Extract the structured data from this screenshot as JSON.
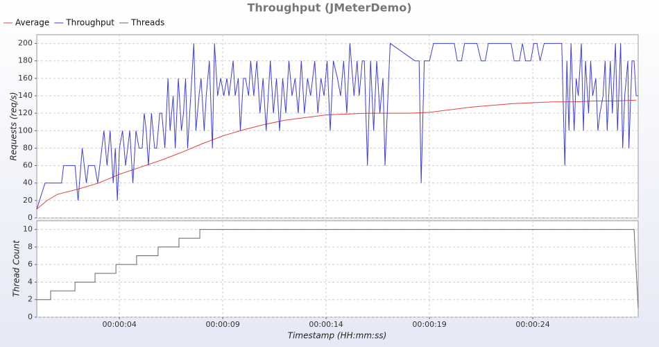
{
  "chart_data": [
    {
      "type": "line",
      "title": "Throughput (JMeterDemo)",
      "y_label": "Requests (req/s)",
      "xlim": [
        0,
        29.1
      ],
      "ylim": [
        0,
        210
      ],
      "yticks": [
        0,
        20,
        40,
        60,
        80,
        100,
        120,
        140,
        160,
        180,
        200
      ],
      "grid": true,
      "legend": "top-left",
      "series": [
        {
          "name": "Average",
          "color": "#e8403c",
          "x": [
            0,
            0.5,
            1,
            2,
            3,
            4,
            5,
            6,
            7,
            8,
            9,
            10,
            11,
            12,
            13,
            14,
            15,
            16,
            17,
            18,
            19,
            20,
            21,
            22,
            23,
            24,
            25,
            26,
            27,
            28,
            29
          ],
          "values": [
            10,
            20,
            27,
            33,
            40,
            50,
            58,
            66,
            75,
            85,
            94,
            101,
            107,
            112,
            115,
            118,
            119,
            120,
            120,
            120,
            121,
            124,
            127,
            129,
            131,
            132,
            133,
            133,
            134,
            134,
            135
          ]
        },
        {
          "name": "Throughput",
          "color": "#3c3cdd",
          "x": [
            0,
            0.4,
            1.2,
            1.3,
            1.85,
            2,
            2.2,
            2.4,
            2.5,
            2.8,
            2.95,
            3.25,
            3.4,
            3.55,
            3.7,
            3.8,
            3.9,
            4,
            4.15,
            4.3,
            4.4,
            4.5,
            4.65,
            4.8,
            4.95,
            5.1,
            5.2,
            5.3,
            5.4,
            5.55,
            5.7,
            5.8,
            5.95,
            6.05,
            6.2,
            6.35,
            6.45,
            6.6,
            6.7,
            6.85,
            7,
            7.1,
            7.2,
            7.3,
            7.45,
            7.6,
            7.7,
            7.85,
            7.95,
            8.1,
            8.2,
            8.35,
            8.5,
            8.6,
            8.75,
            8.9,
            9.05,
            9.2,
            9.3,
            9.5,
            9.6,
            9.75,
            9.85,
            10,
            10.1,
            10.25,
            10.35,
            10.5,
            10.65,
            10.8,
            10.95,
            11.1,
            11.3,
            11.45,
            11.6,
            11.75,
            11.9,
            12.05,
            12.2,
            12.35,
            12.5,
            12.65,
            12.8,
            12.95,
            13.1,
            13.25,
            13.45,
            13.6,
            13.75,
            13.9,
            14.05,
            14.2,
            14.35,
            14.55,
            14.7,
            14.85,
            15,
            15.15,
            15.35,
            15.5,
            15.6,
            15.75,
            15.85,
            16,
            16.15,
            16.3,
            16.45,
            16.6,
            16.75,
            16.85,
            17.1,
            18.3,
            18.5,
            18.6,
            18.75,
            19,
            19.2,
            20.2,
            20.35,
            20.55,
            20.7,
            21.3,
            21.5,
            21.7,
            21.85,
            22.95,
            23.1,
            23.35,
            23.5,
            23.65,
            23.9,
            24.05,
            24.2,
            24.35,
            24.55,
            25.4,
            25.55,
            25.65,
            25.75,
            25.85,
            26,
            26.1,
            26.2,
            26.35,
            26.45,
            26.55,
            26.7,
            26.8,
            26.9,
            27.05,
            27.15,
            27.25,
            27.4,
            27.5,
            27.6,
            27.75,
            27.85,
            28,
            28.1,
            28.25,
            28.35,
            28.45,
            28.6,
            28.65,
            28.8,
            28.9,
            29,
            29.1
          ],
          "values": [
            10,
            40,
            40,
            60,
            60,
            20,
            80,
            40,
            60,
            60,
            40,
            100,
            60,
            100,
            40,
            80,
            20,
            80,
            100,
            60,
            80,
            100,
            40,
            100,
            80,
            80,
            120,
            100,
            60,
            120,
            80,
            80,
            120,
            120,
            80,
            160,
            100,
            140,
            80,
            160,
            100,
            120,
            160,
            80,
            140,
            200,
            100,
            140,
            160,
            100,
            140,
            180,
            80,
            200,
            140,
            160,
            140,
            160,
            140,
            180,
            140,
            160,
            100,
            160,
            160,
            140,
            180,
            140,
            180,
            120,
            160,
            100,
            180,
            120,
            160,
            100,
            160,
            120,
            180,
            140,
            160,
            120,
            180,
            120,
            160,
            140,
            180,
            120,
            160,
            140,
            180,
            100,
            180,
            160,
            140,
            180,
            120,
            200,
            140,
            180,
            140,
            180,
            180,
            60,
            180,
            100,
            180,
            120,
            160,
            60,
            200,
            180,
            180,
            40,
            180,
            180,
            200,
            200,
            180,
            180,
            200,
            200,
            180,
            180,
            200,
            200,
            180,
            180,
            200,
            180,
            180,
            200,
            200,
            180,
            200,
            200,
            60,
            180,
            100,
            200,
            100,
            160,
            140,
            200,
            100,
            180,
            120,
            180,
            140,
            160,
            100,
            120,
            140,
            180,
            100,
            180,
            120,
            200,
            100,
            200,
            80,
            140,
            180,
            80,
            180,
            180,
            140,
            140
          ]
        }
      ]
    },
    {
      "type": "line",
      "y_label": "Thread Count",
      "x_label": "Timestamp (HH:mm:ss)",
      "xlim": [
        0,
        29.1
      ],
      "ylim": [
        0,
        11
      ],
      "yticks": [
        0,
        2,
        4,
        6,
        8,
        10
      ],
      "grid": true,
      "xticks": [
        {
          "value": 4,
          "label": "00:00:04"
        },
        {
          "value": 9,
          "label": "00:00:09"
        },
        {
          "value": 14,
          "label": "00:00:14"
        },
        {
          "value": 19,
          "label": "00:00:19"
        },
        {
          "value": 24,
          "label": "00:00:24"
        }
      ],
      "series": [
        {
          "name": "Threads",
          "color": "#666666",
          "x": [
            0,
            0.67,
            0.67,
            1.85,
            1.85,
            2.82,
            2.82,
            3.83,
            3.83,
            4.83,
            4.83,
            5.87,
            5.87,
            6.88,
            6.88,
            7.89,
            7.89,
            28.9,
            29.1
          ],
          "values": [
            2,
            2,
            3,
            3,
            4,
            4,
            5,
            5,
            6,
            6,
            7,
            7,
            8,
            8,
            9,
            9,
            10,
            10,
            1
          ]
        }
      ]
    }
  ]
}
